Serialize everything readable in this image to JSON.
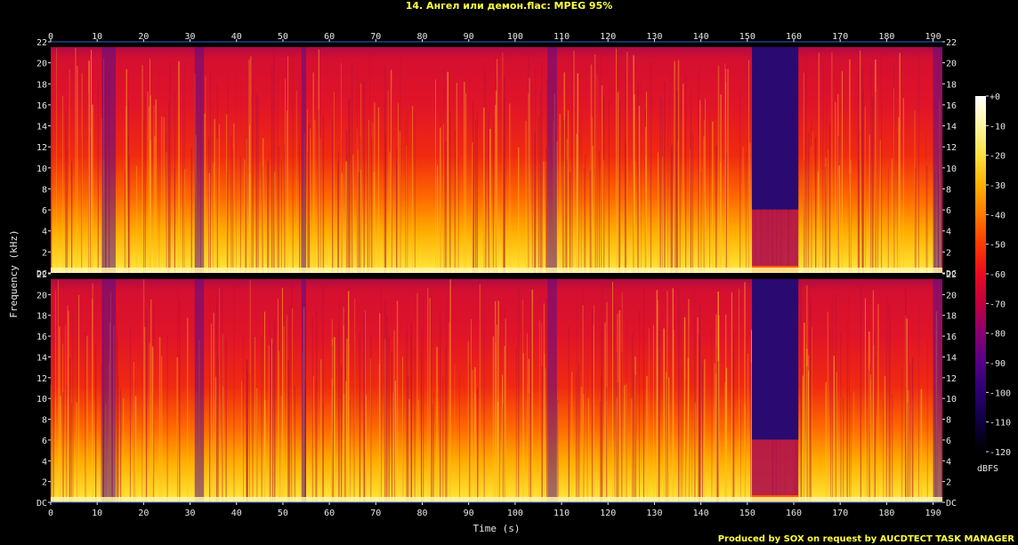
{
  "chart_data": {
    "type": "heatmap",
    "title": "14. Ангел или демон.flac: MPEG 95%",
    "xlabel": "Time (s)",
    "ylabel": "Frequency (kHz)",
    "xlim": [
      0,
      192
    ],
    "ylim": [
      0,
      22
    ],
    "x_ticks": [
      0,
      10,
      20,
      30,
      40,
      50,
      60,
      70,
      80,
      90,
      100,
      110,
      120,
      130,
      140,
      150,
      160,
      170,
      180,
      190
    ],
    "y_ticks": [
      {
        "value": 0,
        "label": "DC"
      },
      {
        "value": 2,
        "label": "2"
      },
      {
        "value": 4,
        "label": "4"
      },
      {
        "value": 6,
        "label": "6"
      },
      {
        "value": 8,
        "label": "8"
      },
      {
        "value": 10,
        "label": "10"
      },
      {
        "value": 12,
        "label": "12"
      },
      {
        "value": 14,
        "label": "14"
      },
      {
        "value": 16,
        "label": "16"
      },
      {
        "value": 18,
        "label": "18"
      },
      {
        "value": 20,
        "label": "20"
      },
      {
        "value": 22,
        "label": "22"
      }
    ],
    "channels": 2,
    "colorbar": {
      "unit": "dBFS",
      "range": [
        -120,
        0
      ],
      "ticks": [
        "+0",
        "-10",
        "-20",
        "-30",
        "-40",
        "-50",
        "-60",
        "-70",
        "-80",
        "-90",
        "-100",
        "-110",
        "-120"
      ],
      "stops": [
        "#ffffff",
        "#fff6a0",
        "#ffe040",
        "#ffb000",
        "#ff7a00",
        "#ff3a00",
        "#ea0a1e",
        "#c00040",
        "#8a0070",
        "#55008a",
        "#2a0070",
        "#0e0040",
        "#000000"
      ]
    },
    "quiet_sections_s": [
      [
        11,
        14
      ],
      [
        31,
        33
      ],
      [
        54,
        55
      ],
      [
        107,
        109
      ],
      [
        151,
        161
      ],
      [
        190,
        192
      ]
    ],
    "content_cutoff_khz": 21.5
  },
  "credit": "Produced by SOX on request by AUCDTECT TASK MANAGER"
}
